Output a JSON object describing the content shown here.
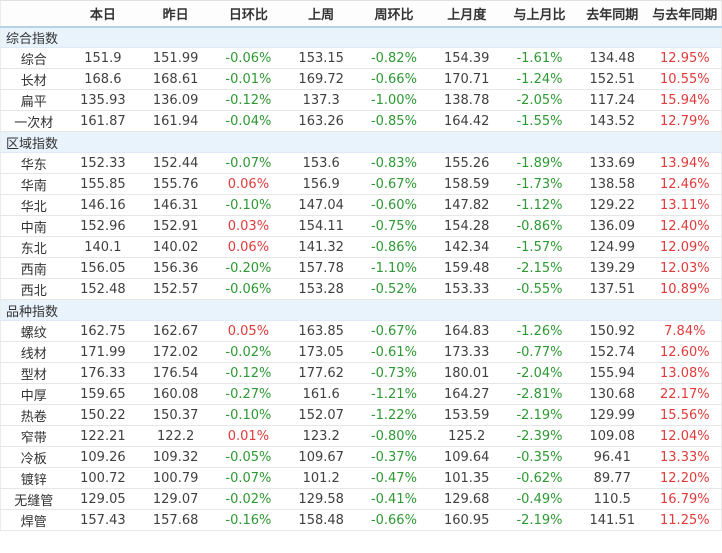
{
  "colors": {
    "positive_red": "#e03b3b",
    "negative_green": "#2e9933",
    "section_bg": "#e9f3fb",
    "header_border_blue": "#b5d2ea"
  },
  "table": {
    "columns": [
      "",
      "本日",
      "昨日",
      "日环比",
      "上周",
      "周环比",
      "上月度",
      "与上月比",
      "去年同期",
      "与去年同期"
    ],
    "sections": [
      {
        "title": "综合指数",
        "rows": [
          {
            "label": "综合",
            "values": [
              "151.9",
              "151.99",
              "-0.06%",
              "153.15",
              "-0.82%",
              "154.39",
              "-1.61%",
              "134.48",
              "12.95%"
            ]
          },
          {
            "label": "长材",
            "values": [
              "168.6",
              "168.61",
              "-0.01%",
              "169.72",
              "-0.66%",
              "170.71",
              "-1.24%",
              "152.51",
              "10.55%"
            ]
          },
          {
            "label": "扁平",
            "values": [
              "135.93",
              "136.09",
              "-0.12%",
              "137.3",
              "-1.00%",
              "138.78",
              "-2.05%",
              "117.24",
              "15.94%"
            ]
          },
          {
            "label": "一次材",
            "values": [
              "161.87",
              "161.94",
              "-0.04%",
              "163.26",
              "-0.85%",
              "164.42",
              "-1.55%",
              "143.52",
              "12.79%"
            ]
          }
        ]
      },
      {
        "title": "区域指数",
        "rows": [
          {
            "label": "华东",
            "values": [
              "152.33",
              "152.44",
              "-0.07%",
              "153.6",
              "-0.83%",
              "155.26",
              "-1.89%",
              "133.69",
              "13.94%"
            ]
          },
          {
            "label": "华南",
            "values": [
              "155.85",
              "155.76",
              "0.06%",
              "156.9",
              "-0.67%",
              "158.59",
              "-1.73%",
              "138.58",
              "12.46%"
            ]
          },
          {
            "label": "华北",
            "values": [
              "146.16",
              "146.31",
              "-0.10%",
              "147.04",
              "-0.60%",
              "147.82",
              "-1.12%",
              "129.22",
              "13.11%"
            ]
          },
          {
            "label": "中南",
            "values": [
              "152.96",
              "152.91",
              "0.03%",
              "154.11",
              "-0.75%",
              "154.28",
              "-0.86%",
              "136.09",
              "12.40%"
            ]
          },
          {
            "label": "东北",
            "values": [
              "140.1",
              "140.02",
              "0.06%",
              "141.32",
              "-0.86%",
              "142.34",
              "-1.57%",
              "124.99",
              "12.09%"
            ]
          },
          {
            "label": "西南",
            "values": [
              "156.05",
              "156.36",
              "-0.20%",
              "157.78",
              "-1.10%",
              "159.48",
              "-2.15%",
              "139.29",
              "12.03%"
            ]
          },
          {
            "label": "西北",
            "values": [
              "152.48",
              "152.57",
              "-0.06%",
              "153.28",
              "-0.52%",
              "153.33",
              "-0.55%",
              "137.51",
              "10.89%"
            ]
          }
        ]
      },
      {
        "title": "品种指数",
        "rows": [
          {
            "label": "螺纹",
            "values": [
              "162.75",
              "162.67",
              "0.05%",
              "163.85",
              "-0.67%",
              "164.83",
              "-1.26%",
              "150.92",
              "7.84%"
            ]
          },
          {
            "label": "线材",
            "values": [
              "171.99",
              "172.02",
              "-0.02%",
              "173.05",
              "-0.61%",
              "173.33",
              "-0.77%",
              "152.74",
              "12.60%"
            ]
          },
          {
            "label": "型材",
            "values": [
              "176.33",
              "176.54",
              "-0.12%",
              "177.62",
              "-0.73%",
              "180.01",
              "-2.04%",
              "155.94",
              "13.08%"
            ]
          },
          {
            "label": "中厚",
            "values": [
              "159.65",
              "160.08",
              "-0.27%",
              "161.6",
              "-1.21%",
              "164.27",
              "-2.81%",
              "130.68",
              "22.17%"
            ]
          },
          {
            "label": "热卷",
            "values": [
              "150.22",
              "150.37",
              "-0.10%",
              "152.07",
              "-1.22%",
              "153.59",
              "-2.19%",
              "129.99",
              "15.56%"
            ]
          },
          {
            "label": "窄带",
            "values": [
              "122.21",
              "122.2",
              "0.01%",
              "123.2",
              "-0.80%",
              "125.2",
              "-2.39%",
              "109.08",
              "12.04%"
            ]
          },
          {
            "label": "冷板",
            "values": [
              "109.26",
              "109.32",
              "-0.05%",
              "109.67",
              "-0.37%",
              "109.64",
              "-0.35%",
              "96.41",
              "13.33%"
            ]
          },
          {
            "label": "镀锌",
            "values": [
              "100.72",
              "100.79",
              "-0.07%",
              "101.2",
              "-0.47%",
              "101.35",
              "-0.62%",
              "89.77",
              "12.20%"
            ]
          },
          {
            "label": "无缝管",
            "values": [
              "129.05",
              "129.07",
              "-0.02%",
              "129.58",
              "-0.41%",
              "129.68",
              "-0.49%",
              "110.5",
              "16.79%"
            ]
          },
          {
            "label": "焊管",
            "values": [
              "157.43",
              "157.68",
              "-0.16%",
              "158.48",
              "-0.66%",
              "160.95",
              "-2.19%",
              "141.51",
              "11.25%"
            ]
          }
        ]
      }
    ]
  }
}
